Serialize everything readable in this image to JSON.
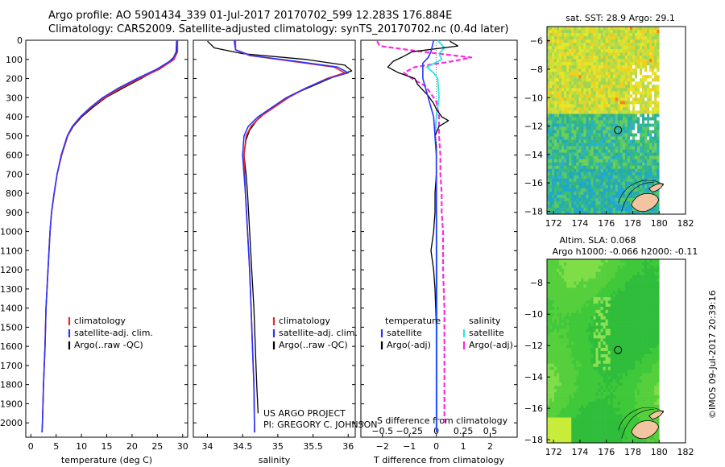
{
  "header": {
    "line1": "Argo profile: AO 5901434_339 01-Jul-2017 20170702_599 12.283S 176.884E",
    "line2": "Climatology: CARS2009. Satellite-adjusted climatology: synTS_20170702.nc (0.4d later)"
  },
  "watermark": "©IMOS 09-Jul-2017 20:39:16",
  "colors": {
    "climatology": "#e8262b",
    "satellite": "#2a33ff",
    "argo": "#000000",
    "sat_salinity": "#25e6e6",
    "argo_salinity": "#ff2ae0"
  },
  "chart_data": [
    {
      "type": "line",
      "xlabel": "temperature (deg C)",
      "xlim": [
        -1,
        31
      ],
      "xticks": [
        0,
        5,
        10,
        15,
        20,
        25,
        30
      ],
      "ylim": [
        2075,
        0
      ],
      "yticks": [
        0,
        100,
        200,
        300,
        400,
        500,
        600,
        700,
        800,
        900,
        1000,
        1100,
        1200,
        1300,
        1400,
        1500,
        1600,
        1700,
        1800,
        1900,
        2000
      ],
      "legend": [
        "climatology",
        "satellite-adj. clim.",
        "Argo(..raw -QC)"
      ],
      "series": [
        {
          "name": "climatology",
          "depth": [
            0,
            60,
            100,
            150,
            200,
            250,
            300,
            350,
            400,
            450,
            500,
            600,
            700,
            800,
            900,
            1000,
            1200,
            1400,
            1600,
            1800,
            2000,
            2050
          ],
          "values": [
            29.0,
            29.0,
            28.3,
            25.5,
            21.5,
            17.8,
            14.6,
            12.0,
            9.9,
            8.3,
            7.3,
            6.1,
            5.2,
            4.6,
            4.1,
            3.8,
            3.4,
            3.0,
            2.8,
            2.5,
            2.3,
            2.2
          ]
        },
        {
          "name": "satellite-adj. clim.",
          "depth": [
            0,
            60,
            100,
            150,
            200,
            250,
            300,
            350,
            400,
            450,
            500,
            600,
            700,
            800,
            900,
            1000,
            1200,
            1400,
            1600,
            1800,
            2000,
            2050
          ],
          "values": [
            28.9,
            28.8,
            28.0,
            25.0,
            21.0,
            17.3,
            14.2,
            11.8,
            9.8,
            8.2,
            7.2,
            6.0,
            5.2,
            4.6,
            4.1,
            3.8,
            3.4,
            3.0,
            2.8,
            2.5,
            2.3,
            2.2
          ]
        },
        {
          "name": "Argo(..raw -QC)",
          "depth": [
            5,
            60,
            90,
            120,
            150,
            200,
            250,
            300,
            350,
            400,
            450,
            500,
            600,
            700,
            800,
            900,
            1000,
            1200,
            1400,
            1600,
            1800,
            2000
          ],
          "values": [
            28.8,
            28.7,
            28.2,
            27.0,
            25.2,
            21.8,
            18.2,
            14.8,
            12.3,
            10.1,
            8.4,
            7.3,
            6.1,
            5.2,
            4.6,
            4.1,
            3.8,
            3.4,
            3.0,
            2.8,
            2.5,
            2.3
          ]
        }
      ]
    },
    {
      "type": "line",
      "xlabel": "salinity",
      "xlim": [
        33.8,
        36.1
      ],
      "xticks": [
        34,
        34.5,
        35,
        35.5,
        36
      ],
      "ylim": [
        2075,
        0
      ],
      "legend": [
        "climatology",
        "satellite-adj. clim.",
        "Argo(..raw -QC)"
      ],
      "annotation": [
        "US ARGO PROJECT",
        "PI: GREGORY C. JOHNSON"
      ],
      "series": [
        {
          "name": "climatology",
          "depth": [
            0,
            50,
            80,
            110,
            140,
            170,
            200,
            250,
            300,
            350,
            400,
            450,
            500,
            600,
            700,
            800,
            1000,
            1200,
            1400,
            1600,
            1800,
            2050
          ],
          "values": [
            34.4,
            34.4,
            34.6,
            35.2,
            35.8,
            35.95,
            35.7,
            35.4,
            35.15,
            34.95,
            34.75,
            34.62,
            34.55,
            34.52,
            34.53,
            34.54,
            34.57,
            34.6,
            34.62,
            34.64,
            34.66,
            34.67
          ]
        },
        {
          "name": "satellite-adj. clim.",
          "depth": [
            0,
            50,
            80,
            110,
            140,
            170,
            200,
            250,
            300,
            350,
            400,
            450,
            500,
            600,
            700,
            800,
            1000,
            1200,
            1400,
            1600,
            1800,
            2050
          ],
          "values": [
            34.38,
            34.4,
            34.62,
            35.25,
            35.85,
            36.0,
            35.72,
            35.4,
            35.12,
            34.92,
            34.72,
            34.58,
            34.52,
            34.5,
            34.52,
            34.54,
            34.57,
            34.6,
            34.62,
            34.64,
            34.66,
            34.67
          ]
        },
        {
          "name": "Argo(..raw -QC)",
          "depth": [
            5,
            40,
            70,
            100,
            130,
            160,
            190,
            230,
            270,
            320,
            370,
            420,
            470,
            520,
            600,
            700,
            800,
            1000,
            1200,
            1400,
            1600,
            1800,
            1950
          ],
          "values": [
            34.0,
            34.1,
            34.5,
            35.4,
            35.95,
            36.05,
            35.8,
            35.55,
            35.3,
            35.05,
            34.85,
            34.7,
            34.6,
            34.55,
            34.52,
            34.55,
            34.57,
            34.6,
            34.63,
            34.66,
            34.68,
            34.7,
            34.72
          ]
        }
      ]
    },
    {
      "type": "line",
      "xlabel": "T difference from climatology",
      "xlabel_top": "S difference from climatology",
      "xlim": [
        -2.8,
        3.0
      ],
      "xticks": [
        -2,
        -1,
        0,
        1,
        2
      ],
      "xticks_top": [
        -0.5,
        -0.25,
        0,
        0.25,
        0.5
      ],
      "ylim": [
        2075,
        0
      ],
      "legend_left": [
        "temperature",
        "satellite",
        "Argo(-adj)"
      ],
      "legend_right": [
        "salinity",
        "satellite",
        "Argo(-adj)"
      ],
      "series": [
        {
          "name": "T satellite",
          "depth": [
            0,
            60,
            90,
            120,
            200,
            400,
            600,
            800,
            1000,
            1500,
            2050
          ],
          "values": [
            -0.1,
            -0.2,
            -0.3,
            -0.5,
            -0.5,
            -0.1,
            0,
            0,
            0,
            0,
            0
          ]
        },
        {
          "name": "T Argo(-adj)",
          "depth": [
            5,
            30,
            60,
            90,
            110,
            140,
            170,
            200,
            230,
            260,
            290,
            330,
            360,
            400,
            420,
            450,
            500,
            550,
            600,
            700,
            800,
            900,
            1000,
            1100,
            1200,
            1300,
            1500,
            1700,
            1900,
            2000
          ],
          "values": [
            0.5,
            0.8,
            -0.9,
            -1.3,
            -1.6,
            -1.8,
            -1.4,
            -0.8,
            -0.7,
            -0.5,
            -0.3,
            -0.1,
            0,
            0.2,
            0.45,
            0.1,
            -0.05,
            0,
            0,
            0,
            -0.05,
            -0.05,
            -0.1,
            -0.2,
            -0.1,
            -0.05,
            0,
            0,
            0,
            0
          ]
        },
        {
          "name": "S satellite",
          "depth": [
            0,
            40,
            70,
            100,
            140,
            170,
            200,
            300,
            400,
            500,
            600,
            800,
            1200,
            1600,
            2050
          ],
          "values": [
            0.05,
            0.3,
            0.1,
            0.2,
            -0.35,
            -0.1,
            0.05,
            0.1,
            0,
            -0.05,
            0,
            0,
            0.02,
            0.02,
            0.02
          ]
        },
        {
          "name": "S Argo(-adj)",
          "depth": [
            5,
            30,
            60,
            90,
            110,
            140,
            170,
            200,
            240,
            280,
            320,
            400,
            500,
            600,
            700,
            800,
            900,
            1000,
            1200,
            1400,
            1600,
            1800,
            2000
          ],
          "values": [
            -2.2,
            -2.1,
            -0.5,
            1.3,
            0.6,
            -0.8,
            -1.2,
            -0.9,
            -0.4,
            -0.2,
            0,
            0.1,
            0.1,
            0.15,
            0.15,
            0.2,
            0.2,
            0.25,
            0.25,
            0.3,
            0.3,
            0.3,
            0.3
          ]
        }
      ]
    },
    {
      "type": "heatmap",
      "title": "sat. SST: 28.9 Argo: 29.1",
      "xlim": [
        171.5,
        182
      ],
      "ylim": [
        -18.2,
        -5
      ],
      "xticks": [
        172,
        174,
        176,
        178,
        180,
        182
      ],
      "yticks": [
        -6,
        -8,
        -10,
        -12,
        -14,
        -16,
        -18
      ],
      "marker": {
        "lon": 176.884,
        "lat": -12.283
      }
    },
    {
      "type": "heatmap",
      "title": "Altim. SLA: 0.068",
      "subtitle": "Argo h1000: -0.066 h2000: -0.11",
      "xlim": [
        171.5,
        182
      ],
      "ylim": [
        -18.2,
        -6.5
      ],
      "xticks": [
        172,
        174,
        176,
        178,
        180,
        182
      ],
      "yticks": [
        -8,
        -10,
        -12,
        -14,
        -16,
        -18
      ],
      "marker": {
        "lon": 176.884,
        "lat": -12.283
      }
    }
  ]
}
